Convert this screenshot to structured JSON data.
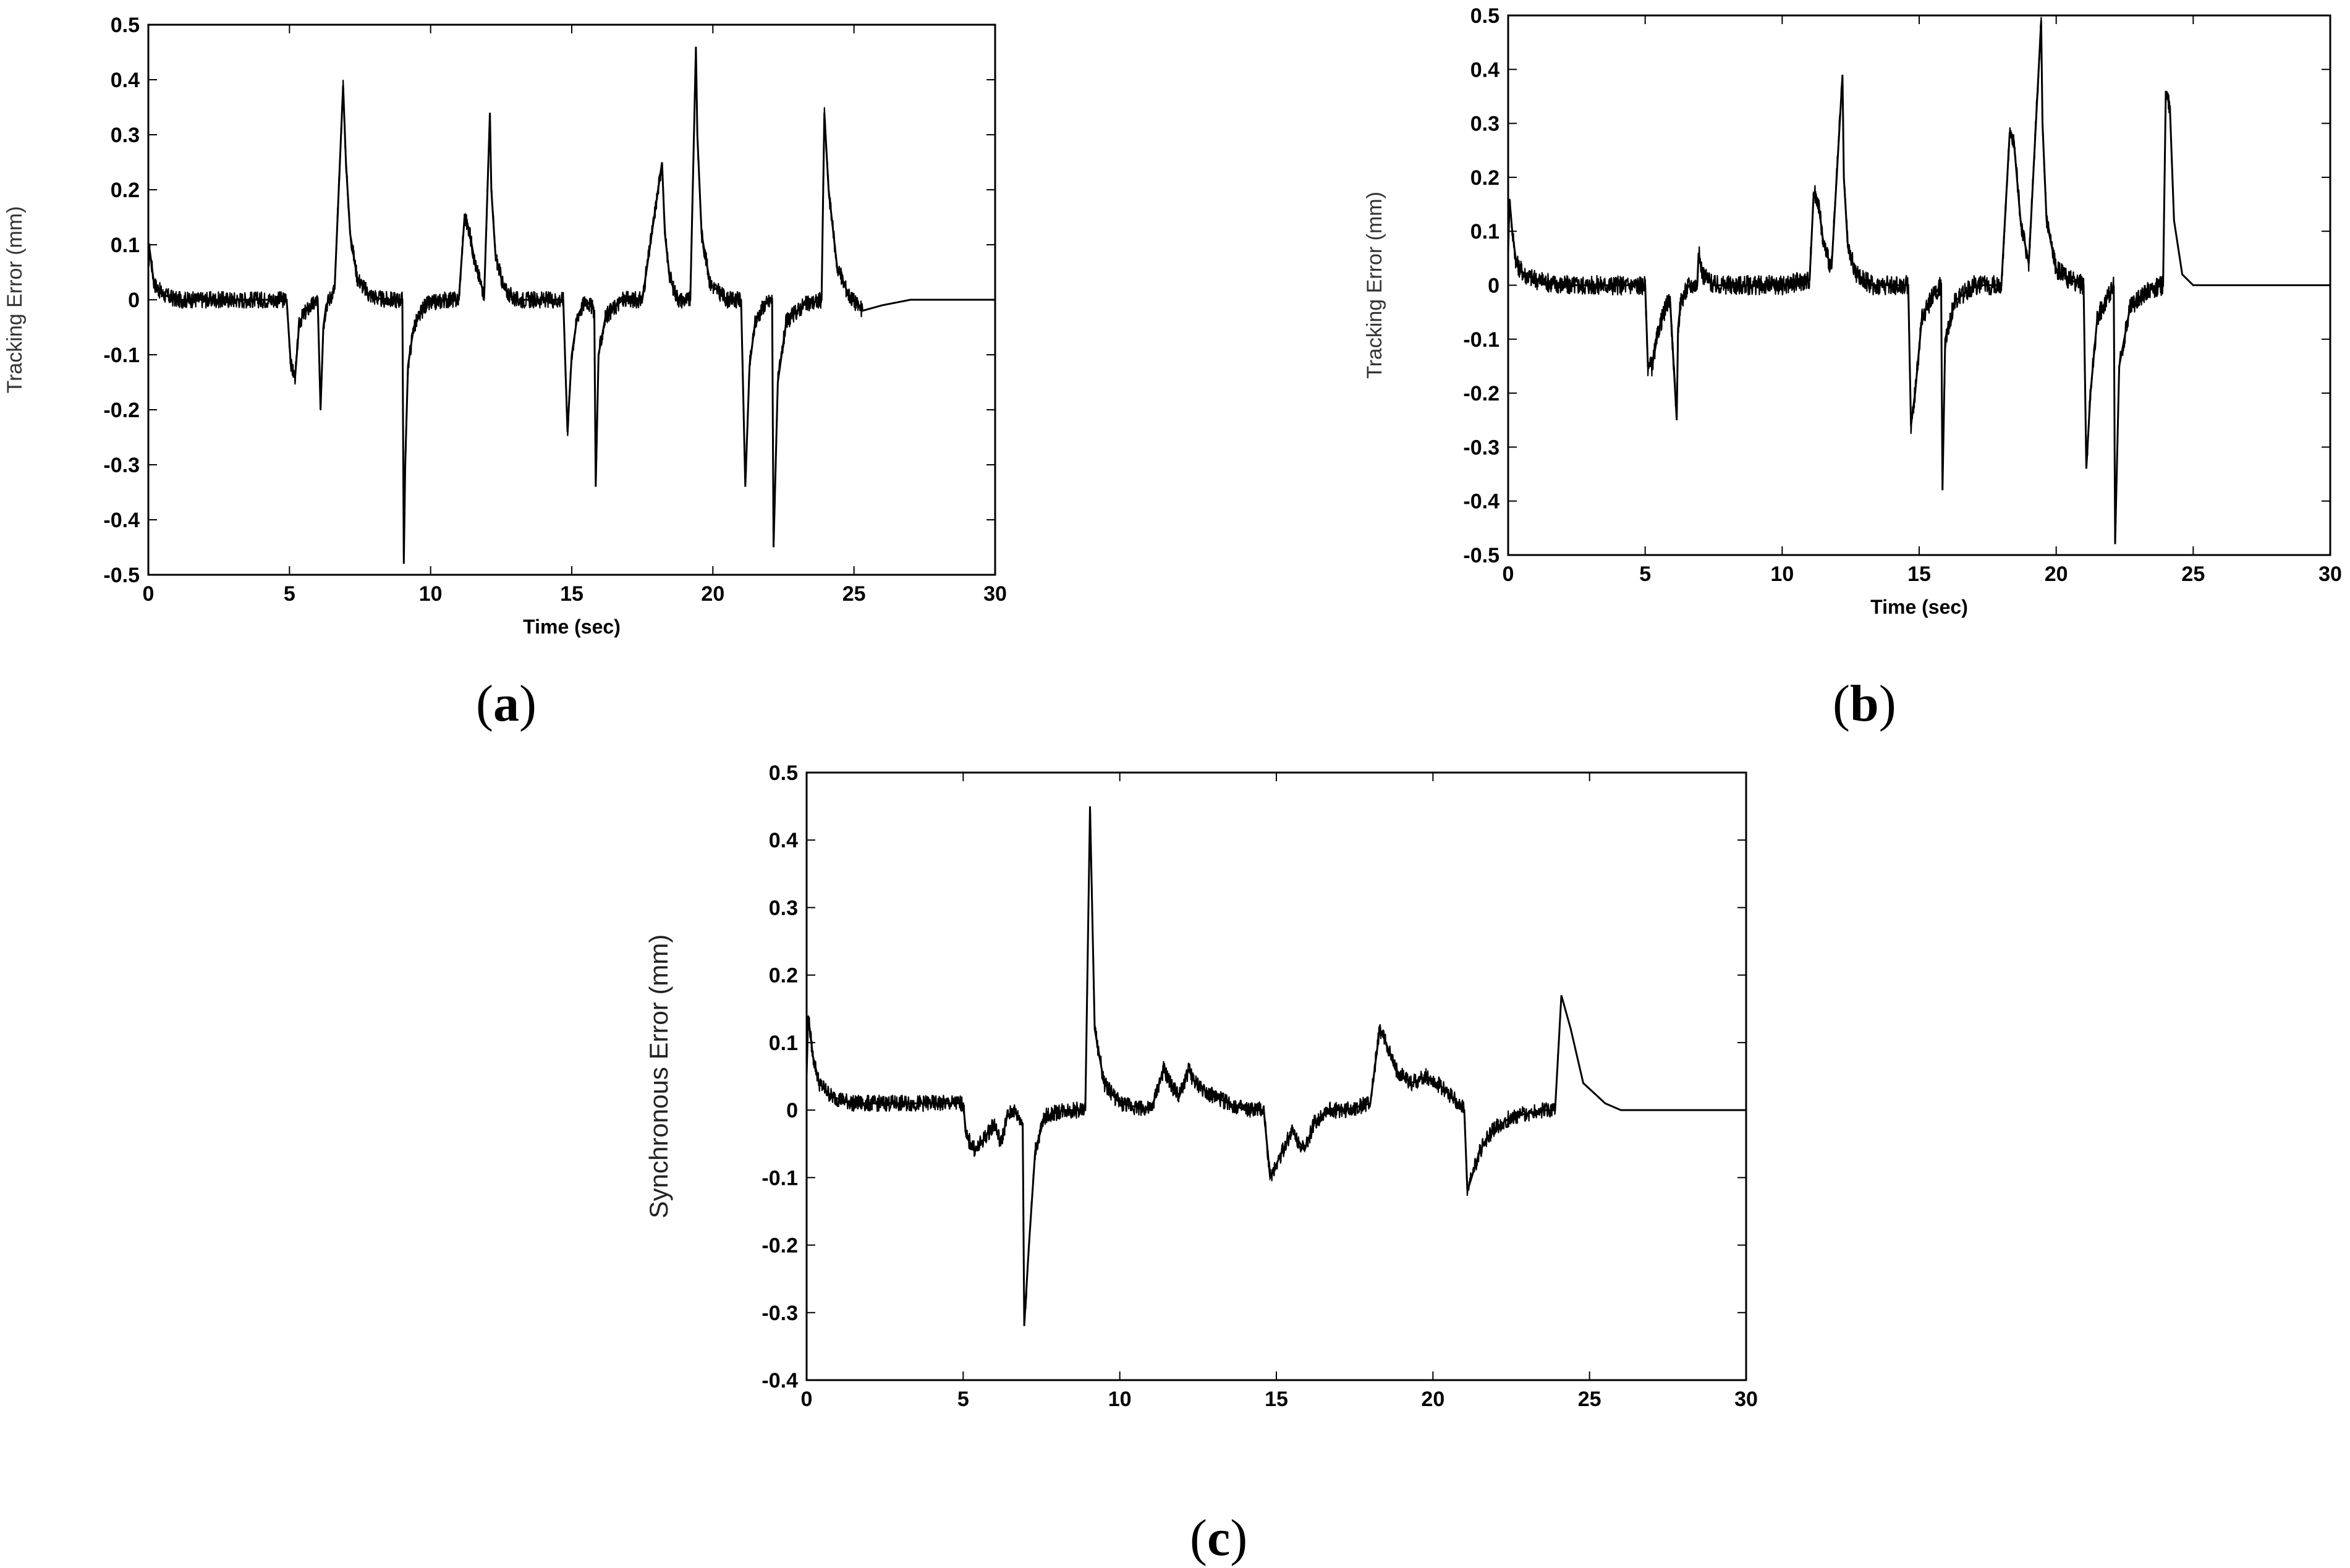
{
  "captions": {
    "a": "a",
    "b": "b",
    "c": "c"
  },
  "colors": {
    "line": "#000000",
    "frame": "#000000",
    "background": "#ffffff"
  },
  "chart_data": [
    {
      "id": "a",
      "type": "line",
      "title": "",
      "xlabel": "Time (sec)",
      "ylabel": "Tracking Error (mm)",
      "xlim": [
        0,
        30
      ],
      "ylim": [
        -0.5,
        0.5
      ],
      "xticks": [
        0,
        5,
        10,
        15,
        20,
        25,
        30
      ],
      "yticks": [
        0.5,
        0.4,
        0.3,
        0.2,
        0.1,
        0,
        -0.1,
        -0.2,
        -0.3,
        -0.4,
        -0.5
      ],
      "noise_amplitude": 0.015,
      "noise_end": 25.3,
      "series": [
        {
          "x": [
            0,
            0.05,
            0.2,
            0.5,
            1,
            2,
            3,
            4,
            4.9,
            5.05,
            5.2,
            5.35,
            5.6,
            6,
            6.1,
            6.2,
            6.3,
            6.6,
            6.9,
            7.0,
            7.15,
            7.4,
            7.8,
            8.3,
            9.0,
            9.05,
            9.1,
            9.2,
            9.4,
            9.8,
            10.5,
            11.0,
            11.2,
            11.35,
            11.6,
            11.9,
            12.1,
            12.15,
            12.3,
            12.6,
            13.0,
            13.8,
            14.7,
            14.85,
            15.0,
            15.2,
            15.5,
            15.8,
            15.85,
            15.95,
            16.2,
            16.8,
            17.5,
            18.2,
            18.3,
            18.45,
            18.6,
            18.8,
            19.2,
            19.4,
            19.45,
            19.6,
            19.9,
            20.5,
            21.0,
            21.15,
            21.3,
            21.5,
            21.8,
            22.1,
            22.15,
            22.3,
            22.6,
            23.2,
            23.85,
            23.95,
            24.1,
            24.4,
            24.8,
            25.3,
            26,
            27,
            28,
            29,
            30
          ],
          "y": [
            0.06,
            0.09,
            0.03,
            0.01,
            0,
            0,
            0,
            0,
            0,
            -0.12,
            -0.14,
            -0.04,
            -0.02,
            0,
            -0.2,
            -0.05,
            -0.01,
            0.02,
            0.39,
            0.25,
            0.12,
            0.04,
            0.01,
            0,
            0,
            -0.48,
            -0.3,
            -0.12,
            -0.05,
            -0.01,
            0,
            0,
            0.15,
            0.13,
            0.06,
            0.01,
            0.34,
            0.2,
            0.08,
            0.02,
            0,
            0,
            0,
            -0.24,
            -0.1,
            -0.03,
            0,
            -0.02,
            -0.34,
            -0.1,
            -0.03,
            0,
            0,
            0.25,
            0.12,
            0.05,
            0.02,
            0,
            0,
            0.46,
            0.3,
            0.12,
            0.03,
            0,
            0,
            -0.34,
            -0.12,
            -0.04,
            -0.01,
            0,
            -0.45,
            -0.15,
            -0.04,
            -0.01,
            0,
            0.34,
            0.2,
            0.06,
            0.01,
            -0.02,
            -0.01,
            0,
            0,
            0,
            0
          ]
        }
      ]
    },
    {
      "id": "b",
      "type": "line",
      "title": "",
      "xlabel": "Time (sec)",
      "ylabel": "Tracking Error (mm)",
      "xlim": [
        0,
        30
      ],
      "ylim": [
        -0.5,
        0.5
      ],
      "xticks": [
        0,
        5,
        10,
        15,
        20,
        25,
        30
      ],
      "yticks": [
        0.5,
        0.4,
        0.3,
        0.2,
        0.1,
        0,
        -0.1,
        -0.2,
        -0.3,
        -0.4,
        -0.5
      ],
      "noise_amplitude": 0.018,
      "noise_end": 24.3,
      "series": [
        {
          "x": [
            0,
            0.05,
            0.15,
            0.3,
            0.6,
            1,
            2,
            3,
            4,
            5.0,
            5.1,
            5.25,
            5.5,
            5.9,
            6.15,
            6.2,
            6.3,
            6.6,
            6.9,
            6.95,
            7.1,
            7.5,
            8.5,
            10,
            11.0,
            11.15,
            11.3,
            11.5,
            11.8,
            12.2,
            12.25,
            12.4,
            12.7,
            13.3,
            14.6,
            14.7,
            14.85,
            15.1,
            15.5,
            15.8,
            15.85,
            15.95,
            16.3,
            17,
            18.0,
            18.3,
            18.45,
            18.7,
            19.0,
            19.45,
            19.5,
            19.65,
            20,
            20.5,
            21.0,
            21.1,
            21.25,
            21.5,
            21.9,
            22.1,
            22.15,
            22.3,
            22.7,
            23.3,
            23.9,
            24.0,
            24.15,
            24.3,
            24.6,
            25,
            26,
            27,
            28,
            29,
            30
          ],
          "y": [
            0.06,
            0.16,
            0.1,
            0.04,
            0.02,
            0.01,
            0,
            0,
            0,
            0,
            -0.15,
            -0.15,
            -0.08,
            -0.02,
            -0.25,
            -0.08,
            -0.03,
            0,
            0,
            0.06,
            0.02,
            0,
            0,
            0,
            0.01,
            0.17,
            0.16,
            0.08,
            0.03,
            0.39,
            0.2,
            0.07,
            0.02,
            0,
            0,
            -0.26,
            -0.2,
            -0.06,
            -0.02,
            0,
            -0.38,
            -0.1,
            -0.03,
            0,
            0,
            0.28,
            0.27,
            0.12,
            0.04,
            0.49,
            0.3,
            0.12,
            0.03,
            0.01,
            0,
            -0.34,
            -0.2,
            -0.06,
            -0.02,
            0,
            -0.48,
            -0.15,
            -0.04,
            -0.01,
            0,
            0.36,
            0.33,
            0.12,
            0.02,
            0,
            0,
            0,
            0,
            0,
            0
          ]
        }
      ]
    },
    {
      "id": "c",
      "type": "line",
      "title": "",
      "xlabel": "",
      "ylabel": "Synchronous Error (mm)",
      "xlim": [
        0,
        30
      ],
      "ylim": [
        -0.4,
        0.5
      ],
      "xticks": [
        0,
        5,
        10,
        15,
        20,
        25,
        30
      ],
      "yticks": [
        0.5,
        0.4,
        0.3,
        0.2,
        0.1,
        0,
        -0.1,
        -0.2,
        -0.3,
        -0.4
      ],
      "noise_amplitude": 0.012,
      "noise_end": 24.0,
      "series": [
        {
          "x": [
            0,
            0.05,
            0.2,
            0.4,
            0.8,
            1.5,
            3,
            5.0,
            5.1,
            5.4,
            5.7,
            6.0,
            6.2,
            6.4,
            6.6,
            6.9,
            6.95,
            7.1,
            7.3,
            7.6,
            8.2,
            8.9,
            9.05,
            9.2,
            9.5,
            10,
            11.0,
            11.4,
            11.6,
            11.9,
            12.2,
            12.4,
            13,
            14.0,
            14.6,
            14.8,
            15.1,
            15.5,
            15.9,
            16.2,
            16.6,
            17.2,
            18.0,
            18.3,
            18.5,
            18.8,
            19.3,
            19.8,
            20.4,
            21.0,
            21.1,
            21.3,
            21.5,
            21.9,
            22.5,
            23.5,
            23.9,
            24.1,
            24.4,
            24.8,
            25.5,
            26,
            27,
            28,
            29,
            30
          ],
          "y": [
            0.05,
            0.14,
            0.08,
            0.04,
            0.02,
            0.01,
            0.01,
            0.01,
            -0.04,
            -0.06,
            -0.04,
            -0.02,
            -0.05,
            -0.01,
            0,
            -0.02,
            -0.32,
            -0.2,
            -0.06,
            -0.01,
            0,
            0,
            0.45,
            0.12,
            0.04,
            0.01,
            0,
            0.06,
            0.04,
            0.02,
            0.06,
            0.04,
            0.02,
            0,
            0,
            -0.1,
            -0.07,
            -0.03,
            -0.06,
            -0.02,
            0,
            0,
            0.01,
            0.12,
            0.1,
            0.06,
            0.04,
            0.05,
            0.03,
            0,
            -0.12,
            -0.09,
            -0.06,
            -0.03,
            -0.01,
            0,
            0,
            0.17,
            0.12,
            0.04,
            0.01,
            0,
            0,
            0,
            0,
            0
          ]
        }
      ]
    }
  ]
}
